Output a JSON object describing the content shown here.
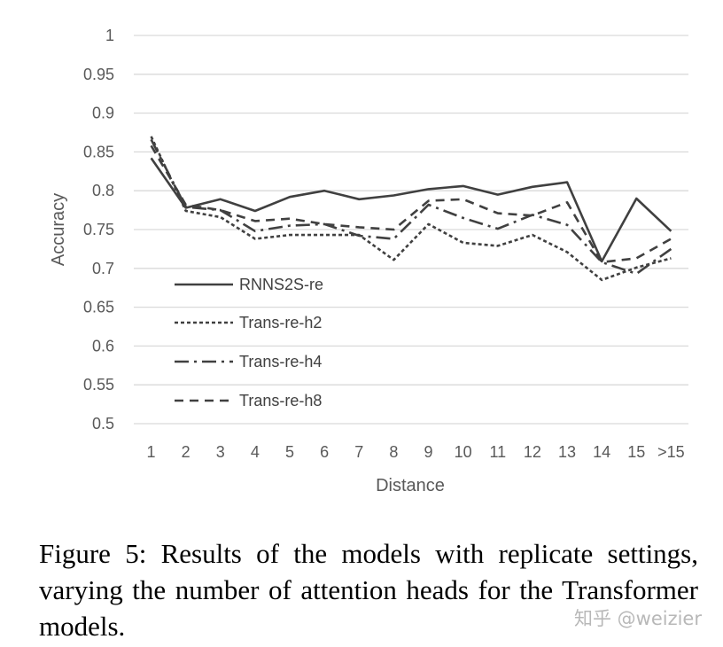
{
  "chart_data": {
    "type": "line",
    "xlabel": "Distance",
    "ylabel": "Accuracy",
    "categories": [
      "1",
      "2",
      "3",
      "4",
      "5",
      "6",
      "7",
      "8",
      "9",
      "10",
      "11",
      "12",
      "13",
      "14",
      "15",
      ">15"
    ],
    "yticks": [
      "1",
      "0.95",
      "0.9",
      "0.85",
      "0.8",
      "0.75",
      "0.7",
      "0.65",
      "0.6",
      "0.55",
      "0.5"
    ],
    "ylim": [
      0.5,
      1.0
    ],
    "grid": "horizontal",
    "legend_position": "inside-left",
    "series": [
      {
        "name": "RNNS2S-re",
        "dash": "solid",
        "values": [
          0.842,
          0.778,
          0.789,
          0.774,
          0.792,
          0.8,
          0.789,
          0.794,
          0.802,
          0.806,
          0.795,
          0.805,
          0.811,
          0.709,
          0.79,
          0.748
        ]
      },
      {
        "name": "Trans-re-h2",
        "dash": "dotted",
        "values": [
          0.87,
          0.774,
          0.766,
          0.738,
          0.743,
          0.743,
          0.743,
          0.711,
          0.757,
          0.733,
          0.729,
          0.743,
          0.721,
          0.685,
          0.701,
          0.713
        ]
      },
      {
        "name": "Trans-re-h4",
        "dash": "dashdot",
        "values": [
          0.866,
          0.779,
          0.775,
          0.748,
          0.755,
          0.757,
          0.742,
          0.738,
          0.782,
          0.765,
          0.751,
          0.769,
          0.756,
          0.708,
          0.693,
          0.725
        ]
      },
      {
        "name": "Trans-re-h8",
        "dash": "dashed",
        "values": [
          0.858,
          0.782,
          0.775,
          0.761,
          0.764,
          0.757,
          0.753,
          0.75,
          0.787,
          0.789,
          0.771,
          0.768,
          0.785,
          0.708,
          0.713,
          0.738
        ]
      }
    ]
  },
  "caption": "Figure 5: Results of the models with replicate settings, varying the number of attention heads for the Transformer models.",
  "watermark": "知乎 @weizier",
  "colors": {
    "grid": "#d9d9d9",
    "line": "#404040",
    "text": "#595959"
  }
}
